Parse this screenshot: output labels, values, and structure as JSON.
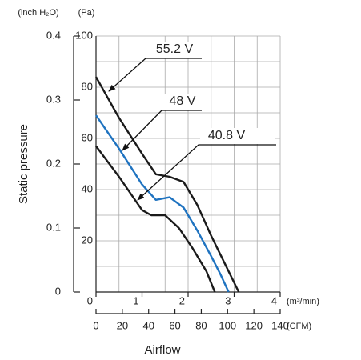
{
  "chart_data": {
    "type": "line",
    "y_label": "Static pressure",
    "x_label": "Airflow",
    "y_unit": "(Pa)",
    "y2_unit": "(inch H₂O)",
    "x_unit": "(m³/min)",
    "x2_unit": "(CFM)",
    "xlim": [
      0,
      4
    ],
    "xticks": [
      0,
      1,
      2,
      3,
      4
    ],
    "x2lim": [
      0,
      140
    ],
    "x2ticks": [
      0,
      20,
      40,
      60,
      80,
      100,
      120,
      140
    ],
    "ylim": [
      0,
      100
    ],
    "yticks": [
      20,
      40,
      60,
      80,
      100
    ],
    "y2lim": [
      0,
      0.4
    ],
    "y2ticks": [
      0,
      0.1,
      0.2,
      0.3,
      0.4
    ],
    "grid": true,
    "series": [
      {
        "name": "55.2 V",
        "color": "#1a1a1a",
        "x": [
          0,
          0.5,
          1,
          1.3,
          1.6,
          1.9,
          2.2,
          2.5,
          2.8,
          3.1
        ],
        "values": [
          84,
          68,
          54,
          46,
          45,
          43,
          34,
          22,
          11,
          0
        ]
      },
      {
        "name": "48 V",
        "color": "#1f73c0",
        "x": [
          0,
          0.5,
          1,
          1.3,
          1.6,
          1.9,
          2.2,
          2.5,
          2.7,
          2.88
        ],
        "values": [
          69,
          56,
          42,
          36,
          37,
          33,
          24,
          14,
          7,
          0
        ]
      },
      {
        "name": "40.8 V",
        "color": "#1a1a1a",
        "x": [
          0,
          0.5,
          1,
          1.2,
          1.5,
          1.8,
          2.1,
          2.4,
          2.58
        ],
        "values": [
          57,
          45,
          32,
          30,
          30,
          25,
          17,
          8,
          0
        ]
      }
    ]
  }
}
